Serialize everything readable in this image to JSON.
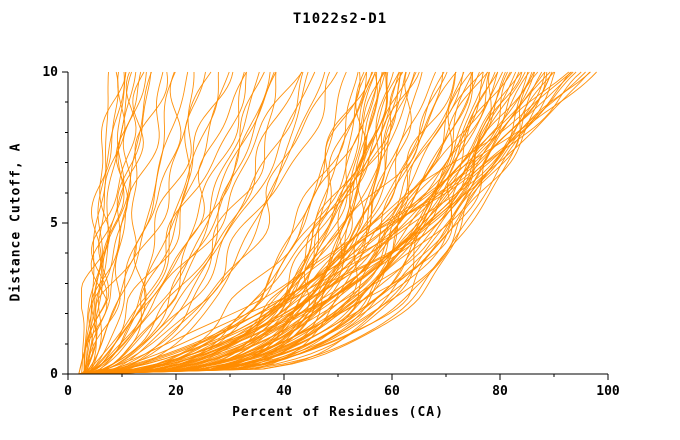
{
  "chart_data": {
    "type": "line",
    "title": "T1022s2-D1",
    "xlabel": "Percent of Residues (CA)",
    "ylabel": "Distance Cutoff, A",
    "xlim": [
      0,
      100
    ],
    "ylim": [
      0,
      10
    ],
    "xticks": {
      "major": [
        0,
        20,
        40,
        60,
        80,
        100
      ],
      "minor": [
        10,
        30,
        50,
        70,
        90
      ]
    },
    "yticks": {
      "major": [
        0,
        5,
        10
      ],
      "minor": [
        1,
        2,
        3,
        4,
        6,
        7,
        8,
        9
      ]
    },
    "grid": false,
    "legend": "none",
    "line_color": "#FF8C00",
    "axis_color": "#000000",
    "jitter": 1.8,
    "series_format": [
      "x0_percent_at_cutoff_0",
      "xf_percent_at_cutoff_10",
      "shape_exponent"
    ],
    "curves": [
      [
        3,
        8,
        0.9
      ],
      [
        2.5,
        9,
        1.05
      ],
      [
        3,
        10,
        0.8
      ],
      [
        4,
        11,
        0.7
      ],
      [
        3,
        12,
        1.15
      ],
      [
        2,
        13,
        0.95
      ],
      [
        3,
        14,
        0.8
      ],
      [
        3.5,
        15,
        0.9
      ],
      [
        3,
        16,
        1.1
      ],
      [
        2.5,
        17,
        0.72
      ],
      [
        3,
        18,
        0.85
      ],
      [
        4,
        12,
        0.95
      ],
      [
        3,
        10,
        1.25
      ],
      [
        2,
        15,
        1.0
      ],
      [
        3,
        13,
        0.78
      ],
      [
        3,
        9,
        1.1
      ],
      [
        3,
        20,
        0.6
      ],
      [
        3,
        22,
        0.75
      ],
      [
        2.5,
        24,
        0.5
      ],
      [
        3,
        26,
        0.85
      ],
      [
        4,
        28,
        0.6
      ],
      [
        3,
        30,
        0.7
      ],
      [
        2,
        32,
        0.55
      ],
      [
        3,
        34,
        0.8
      ],
      [
        3,
        36,
        0.5
      ],
      [
        3.5,
        38,
        0.65
      ],
      [
        3,
        40,
        0.45
      ],
      [
        2.5,
        42,
        0.7
      ],
      [
        3,
        44,
        0.55
      ],
      [
        3,
        46,
        0.62
      ],
      [
        4,
        48,
        0.5
      ],
      [
        3,
        50,
        0.58
      ],
      [
        3,
        25,
        0.42
      ],
      [
        2,
        35,
        0.48
      ],
      [
        3,
        45,
        0.4
      ],
      [
        3,
        29,
        0.66
      ],
      [
        3.5,
        33,
        0.52
      ],
      [
        3,
        39,
        0.72
      ],
      [
        2.5,
        47,
        0.45
      ],
      [
        3,
        21,
        0.5
      ],
      [
        3,
        43,
        0.6
      ],
      [
        3,
        37,
        0.44
      ],
      [
        3,
        52,
        0.3
      ],
      [
        3,
        53,
        0.22
      ],
      [
        2.5,
        54,
        0.35
      ],
      [
        3,
        55,
        0.18
      ],
      [
        4,
        55,
        0.28
      ],
      [
        3,
        56,
        0.2
      ],
      [
        2,
        56,
        0.33
      ],
      [
        3,
        57,
        0.16
      ],
      [
        3,
        57,
        0.26
      ],
      [
        3.5,
        58,
        0.2
      ],
      [
        3,
        58,
        0.3
      ],
      [
        2.5,
        58,
        0.24
      ],
      [
        3,
        59,
        0.18
      ],
      [
        3,
        59,
        0.28
      ],
      [
        4,
        60,
        0.22
      ],
      [
        3,
        60,
        0.32
      ],
      [
        3,
        60,
        0.17
      ],
      [
        2,
        61,
        0.25
      ],
      [
        3,
        61,
        0.35
      ],
      [
        3,
        62,
        0.2
      ],
      [
        3.5,
        62,
        0.28
      ],
      [
        3,
        63,
        0.23
      ],
      [
        2.5,
        63,
        0.33
      ],
      [
        3,
        64,
        0.19
      ],
      [
        3,
        64,
        0.27
      ],
      [
        4,
        65,
        0.24
      ],
      [
        3,
        65,
        0.36
      ],
      [
        3,
        55,
        0.4
      ],
      [
        2,
        57,
        0.38
      ],
      [
        3,
        59,
        0.4
      ],
      [
        3,
        61,
        0.15
      ],
      [
        3,
        63,
        0.4
      ],
      [
        3,
        68,
        0.3
      ],
      [
        3,
        69,
        0.25
      ],
      [
        2.5,
        70,
        0.35
      ],
      [
        3,
        71,
        0.28
      ],
      [
        4,
        72,
        0.22
      ],
      [
        3,
        72,
        0.4
      ],
      [
        2,
        73,
        0.3
      ],
      [
        3,
        74,
        0.26
      ],
      [
        3,
        74,
        0.36
      ],
      [
        3.5,
        75,
        0.3
      ],
      [
        3,
        75,
        0.22
      ],
      [
        2.5,
        76,
        0.33
      ],
      [
        3,
        76,
        0.27
      ],
      [
        3,
        77,
        0.38
      ],
      [
        4,
        77,
        0.24
      ],
      [
        3,
        78,
        0.3
      ],
      [
        3,
        78,
        0.2
      ],
      [
        2,
        79,
        0.34
      ],
      [
        3,
        79,
        0.27
      ],
      [
        3,
        80,
        0.31
      ],
      [
        3.5,
        80,
        0.23
      ],
      [
        3,
        81,
        0.36
      ],
      [
        2.5,
        81,
        0.28
      ],
      [
        3,
        82,
        0.32
      ],
      [
        3,
        82,
        0.25
      ],
      [
        4,
        83,
        0.35
      ],
      [
        3,
        83,
        0.29
      ],
      [
        3,
        84,
        0.4
      ],
      [
        2,
        84,
        0.26
      ],
      [
        3,
        85,
        0.33
      ],
      [
        3,
        85,
        0.22
      ],
      [
        3.5,
        86,
        0.37
      ],
      [
        3,
        86,
        0.3
      ],
      [
        2.5,
        87,
        0.27
      ],
      [
        3,
        87,
        0.42
      ],
      [
        3,
        88,
        0.31
      ],
      [
        4,
        88,
        0.25
      ],
      [
        3,
        89,
        0.34
      ],
      [
        3,
        89,
        0.28
      ],
      [
        2,
        90,
        0.38
      ],
      [
        3,
        90,
        0.3
      ],
      [
        3,
        71,
        0.45
      ],
      [
        3,
        76,
        0.45
      ],
      [
        2.5,
        80,
        0.45
      ],
      [
        3,
        84,
        0.45
      ],
      [
        3,
        88,
        0.45
      ],
      [
        3,
        91,
        0.55
      ],
      [
        3,
        92,
        0.6
      ],
      [
        2.5,
        93,
        0.5
      ],
      [
        3,
        94,
        0.65
      ],
      [
        4,
        95,
        0.55
      ],
      [
        3,
        95,
        0.7
      ],
      [
        2,
        96,
        0.6
      ],
      [
        3,
        96,
        0.52
      ],
      [
        3,
        97,
        0.68
      ],
      [
        3.5,
        97,
        0.58
      ],
      [
        3,
        93,
        0.75
      ],
      [
        3,
        90,
        0.62
      ]
    ]
  }
}
